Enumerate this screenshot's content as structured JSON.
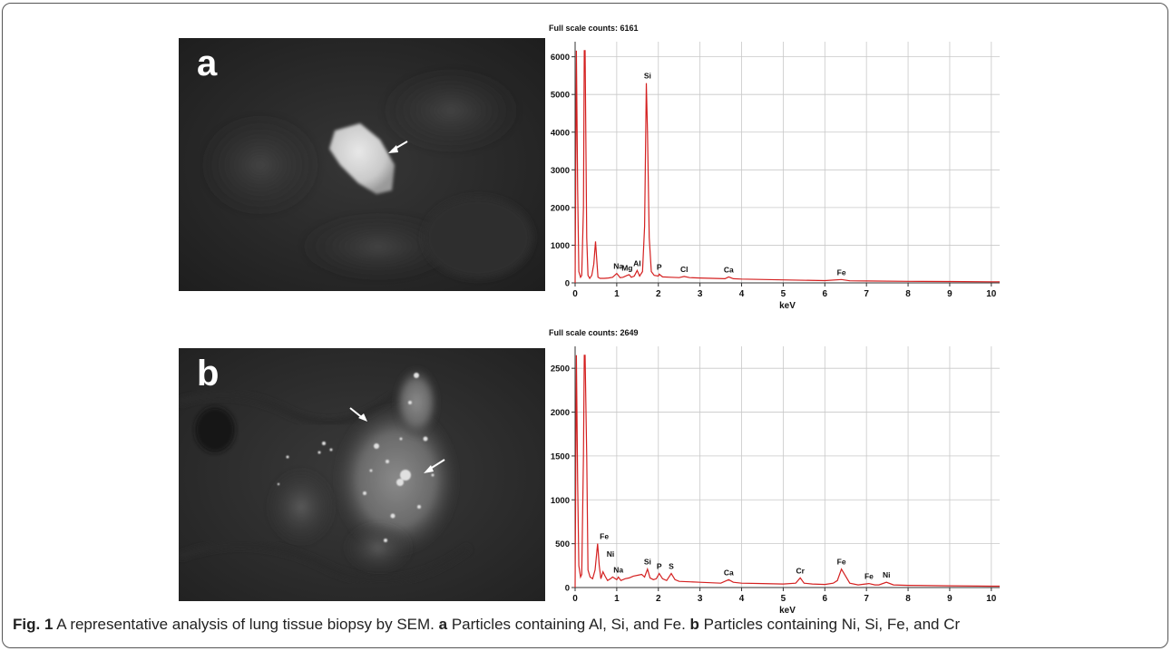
{
  "figure": {
    "caption": {
      "fig_label": "Fig. 1",
      "text1": " A representative analysis of lung tissue biopsy by SEM. ",
      "label_a": "a",
      "text2": " Particles containing Al, Si, and Fe. ",
      "label_b": "b",
      "text3": " Particles containing Ni, Si, Fe, and Cr"
    },
    "panels": [
      {
        "letter": "a",
        "full_scale_label": "Full scale counts: 6161"
      },
      {
        "letter": "b",
        "full_scale_label": "Full scale counts: 2649"
      }
    ]
  },
  "chart_data": [
    {
      "type": "line",
      "title": "Full scale counts: 6161",
      "xlabel": "keV",
      "ylabel": "",
      "xlim": [
        0,
        10.2
      ],
      "ylim": [
        0,
        6400
      ],
      "xticks": [
        0,
        1,
        2,
        3,
        4,
        5,
        6,
        7,
        8,
        9,
        10
      ],
      "yticks": [
        0,
        1000,
        2000,
        3000,
        4000,
        5000,
        6000
      ],
      "grid": true,
      "line_color": "#d42020",
      "x": [
        0.0,
        0.03,
        0.06,
        0.09,
        0.13,
        0.16,
        0.2,
        0.22,
        0.24,
        0.28,
        0.31,
        0.35,
        0.4,
        0.45,
        0.49,
        0.52,
        0.55,
        0.6,
        0.7,
        0.8,
        0.9,
        1.0,
        1.04,
        1.08,
        1.15,
        1.25,
        1.3,
        1.35,
        1.42,
        1.49,
        1.55,
        1.62,
        1.67,
        1.71,
        1.74,
        1.78,
        1.83,
        1.9,
        2.0,
        2.02,
        2.1,
        2.3,
        2.5,
        2.62,
        2.75,
        3.0,
        3.3,
        3.6,
        3.69,
        3.8,
        4.0,
        5.0,
        6.0,
        6.4,
        6.6,
        7.0,
        8.0,
        9.0,
        10.0,
        10.2
      ],
      "y": [
        0,
        6161,
        2500,
        300,
        150,
        200,
        2000,
        6161,
        6161,
        1200,
        200,
        120,
        200,
        500,
        1100,
        600,
        150,
        120,
        120,
        130,
        150,
        250,
        200,
        140,
        150,
        200,
        220,
        150,
        180,
        330,
        180,
        300,
        1500,
        5300,
        4000,
        1200,
        300,
        200,
        180,
        230,
        160,
        150,
        140,
        170,
        140,
        130,
        120,
        110,
        160,
        110,
        100,
        80,
        60,
        90,
        55,
        50,
        40,
        35,
        30,
        30
      ],
      "peak_labels": [
        {
          "label": "Si",
          "x": 1.74,
          "y": 5300
        },
        {
          "label": "Na",
          "x": 1.04,
          "y": 250
        },
        {
          "label": "Mg",
          "x": 1.25,
          "y": 200
        },
        {
          "label": "Al",
          "x": 1.49,
          "y": 330
        },
        {
          "label": "P",
          "x": 2.02,
          "y": 230
        },
        {
          "label": "Cl",
          "x": 2.62,
          "y": 170
        },
        {
          "label": "Ca",
          "x": 3.69,
          "y": 160
        },
        {
          "label": "Fe",
          "x": 6.4,
          "y": 90
        }
      ]
    },
    {
      "type": "line",
      "title": "Full scale counts: 2649",
      "xlabel": "keV",
      "ylabel": "",
      "xlim": [
        0,
        10.2
      ],
      "ylim": [
        0,
        2750
      ],
      "xticks": [
        0,
        1,
        2,
        3,
        4,
        5,
        6,
        7,
        8,
        9,
        10
      ],
      "yticks": [
        0,
        500,
        1000,
        1500,
        2000,
        2500
      ],
      "grid": true,
      "line_color": "#d42020",
      "x": [
        0.0,
        0.03,
        0.06,
        0.09,
        0.13,
        0.16,
        0.2,
        0.22,
        0.24,
        0.28,
        0.31,
        0.36,
        0.42,
        0.48,
        0.54,
        0.58,
        0.62,
        0.67,
        0.72,
        0.78,
        0.85,
        0.9,
        1.0,
        1.04,
        1.1,
        1.2,
        1.3,
        1.4,
        1.5,
        1.6,
        1.67,
        1.74,
        1.8,
        1.88,
        1.95,
        2.02,
        2.1,
        2.2,
        2.31,
        2.4,
        2.5,
        3.0,
        3.5,
        3.69,
        3.8,
        4.0,
        4.5,
        5.0,
        5.3,
        5.41,
        5.5,
        5.7,
        6.0,
        6.2,
        6.3,
        6.4,
        6.5,
        6.6,
        6.8,
        7.06,
        7.2,
        7.3,
        7.48,
        7.65,
        8.0,
        9.0,
        10.0,
        10.2
      ],
      "y": [
        0,
        2649,
        1200,
        250,
        120,
        150,
        1500,
        2649,
        2649,
        1500,
        200,
        120,
        100,
        200,
        500,
        250,
        100,
        180,
        130,
        80,
        100,
        120,
        90,
        120,
        80,
        100,
        110,
        130,
        140,
        150,
        120,
        210,
        110,
        90,
        100,
        160,
        100,
        80,
        160,
        90,
        70,
        60,
        50,
        90,
        60,
        50,
        45,
        40,
        50,
        110,
        50,
        40,
        35,
        50,
        80,
        210,
        130,
        50,
        30,
        45,
        30,
        30,
        60,
        30,
        25,
        20,
        15,
        15
      ],
      "peak_labels": [
        {
          "label": "Fe",
          "x": 0.7,
          "y": 500
        },
        {
          "label": "Ni",
          "x": 0.85,
          "y": 300
        },
        {
          "label": "Na",
          "x": 1.04,
          "y": 120
        },
        {
          "label": "Si",
          "x": 1.74,
          "y": 210
        },
        {
          "label": "P",
          "x": 2.02,
          "y": 160
        },
        {
          "label": "S",
          "x": 2.31,
          "y": 160
        },
        {
          "label": "Ca",
          "x": 3.69,
          "y": 90
        },
        {
          "label": "Cr",
          "x": 5.41,
          "y": 110
        },
        {
          "label": "Fe",
          "x": 6.4,
          "y": 210
        },
        {
          "label": "Fe",
          "x": 7.06,
          "y": 45
        },
        {
          "label": "Ni",
          "x": 7.48,
          "y": 60
        }
      ]
    }
  ]
}
